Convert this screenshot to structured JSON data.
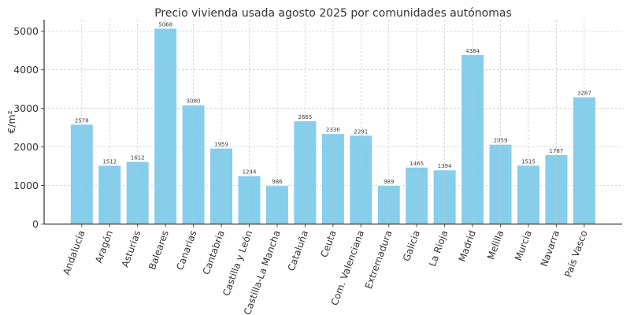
{
  "chart_data": {
    "type": "bar",
    "title": "Precio vivienda usada agosto 2025 por comunidades autónomas",
    "xlabel": "",
    "ylabel": "€/m²",
    "ylim": [
      0,
      5300
    ],
    "yticks": [
      0,
      1000,
      2000,
      3000,
      4000,
      5000
    ],
    "ytick_labels": [
      "0",
      "1000",
      "2000",
      "3000",
      "4000",
      "5000"
    ],
    "grid": true,
    "bar_color": "#87CEEB",
    "categories": [
      "Andalucía",
      "Aragón",
      "Asturias",
      "Baleares",
      "Canarias",
      "Cantabria",
      "Castilla y León",
      "Castilla-La Mancha",
      "Cataluña",
      "Ceuta",
      "Com. Valenciana",
      "Extremadura",
      "Galicia",
      "La Rioja",
      "Madrid",
      "Melilla",
      "Murcia",
      "Navarra",
      "País Vasco"
    ],
    "values": [
      2578,
      1512,
      1612,
      5068,
      3080,
      1959,
      1244,
      986,
      2665,
      2336,
      2291,
      989,
      1465,
      1394,
      4384,
      2059,
      1515,
      1787,
      3287
    ],
    "data_labels": [
      "2578",
      "1512",
      "1612",
      "5068",
      "3080",
      "1959",
      "1244",
      "986",
      "2665",
      "2336",
      "2291",
      "989",
      "1465",
      "1394",
      "4384",
      "2059",
      "1515",
      "1787",
      "3287"
    ]
  }
}
